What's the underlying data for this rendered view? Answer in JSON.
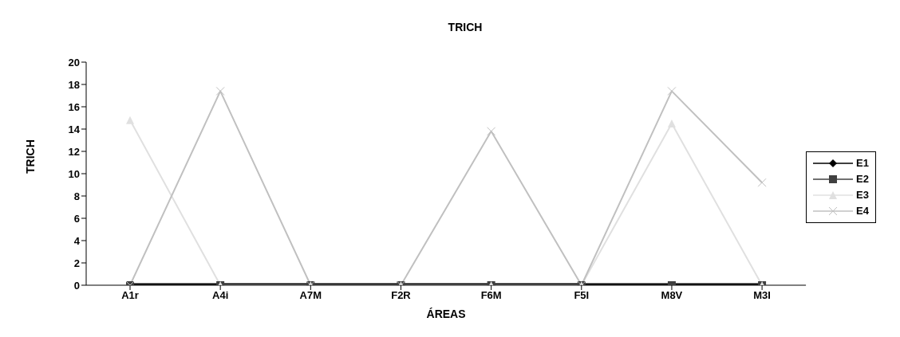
{
  "chart_data": {
    "type": "line",
    "title": "TRICH",
    "xlabel": "ÁREAS",
    "ylabel": "TRICH",
    "categories": [
      "A1r",
      "A4i",
      "A7M",
      "F2R",
      "F6M",
      "F5I",
      "M8V",
      "M3I"
    ],
    "series": [
      {
        "name": "E1",
        "color": "#000000",
        "marker": "diamond",
        "values": [
          0,
          0,
          0,
          0,
          0,
          0,
          0,
          0
        ]
      },
      {
        "name": "E2",
        "color": "#404040",
        "marker": "square",
        "values": [
          0,
          0,
          0,
          0,
          0,
          0,
          0,
          0
        ]
      },
      {
        "name": "E3",
        "color": "#e0e0e0",
        "marker": "triangle",
        "values": [
          14.8,
          0,
          0,
          0,
          0,
          0,
          14.5,
          0
        ]
      },
      {
        "name": "E4",
        "color": "#c0c0c0",
        "marker": "cross",
        "values": [
          0,
          17.4,
          0,
          0,
          13.8,
          0,
          17.4,
          9.2
        ]
      }
    ],
    "ylim": [
      0,
      20
    ],
    "yticks": [
      0,
      2,
      4,
      6,
      8,
      10,
      12,
      14,
      16,
      18,
      20
    ],
    "grid": false,
    "legend": "right"
  }
}
